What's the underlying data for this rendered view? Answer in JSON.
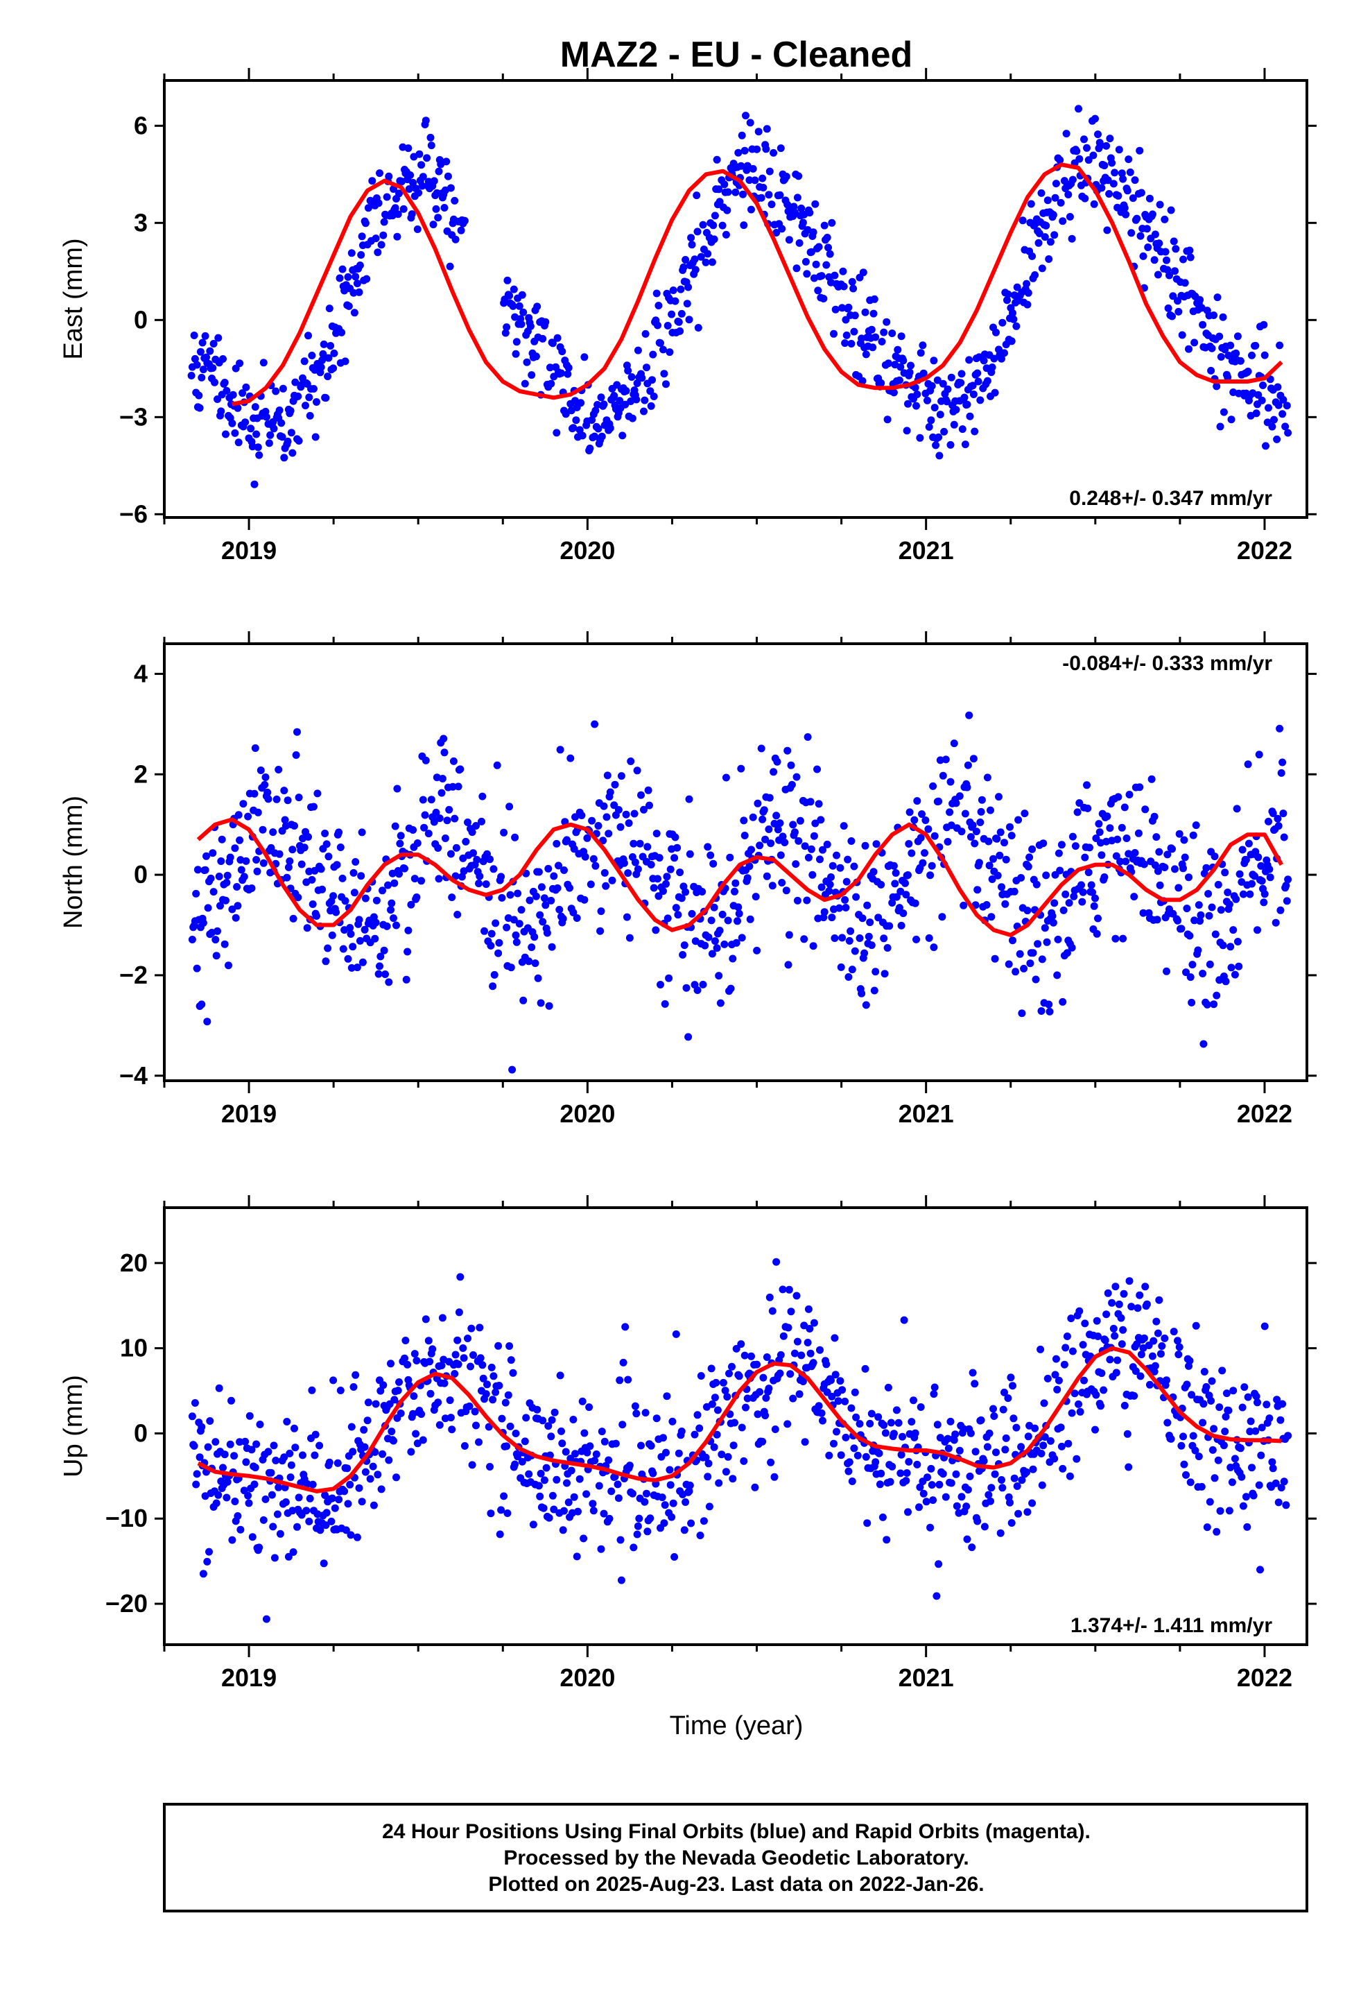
{
  "chart_data": {
    "type": "scatter",
    "title": "MAZ2  - EU - Cleaned",
    "xlabel": "Time (year)",
    "x_ticks": [
      "2019",
      "2020",
      "2021",
      "2022"
    ],
    "xlim": [
      2018.75,
      2022.125
    ],
    "colors": {
      "points": "#0000ff",
      "fit": "#ff0000",
      "frame": "#000000"
    },
    "panels": [
      {
        "id": "east",
        "ylabel": "East (mm)",
        "ylim": [
          -6.1,
          7.4
        ],
        "y_ticks": [
          6,
          3,
          0,
          -3,
          -6
        ],
        "rate_label": "0.248+/- 0.347 mm/yr",
        "rate_position": "bottom-right",
        "model": {
          "offset": 0.55,
          "trend": 0.248,
          "annual": [
            -3.55,
            -0.35
          ],
          "semiannual": [
            0.3,
            -0.35
          ]
        },
        "scatter_sd": 0.75,
        "series": [
          {
            "name": "",
            "x": [
              2018.95,
              2019.0,
              2019.05,
              2019.1,
              2019.15,
              2019.2,
              2019.25,
              2019.3,
              2019.35,
              2019.4,
              2019.45,
              2019.5,
              2019.55,
              2019.6,
              2019.65,
              2019.7,
              2019.75,
              2019.8,
              2019.85,
              2019.9,
              2019.95,
              2020.0,
              2020.05,
              2020.1,
              2020.15,
              2020.2,
              2020.25,
              2020.3,
              2020.35,
              2020.4,
              2020.45,
              2020.5,
              2020.55,
              2020.6,
              2020.65,
              2020.7,
              2020.75,
              2020.8,
              2020.85,
              2020.9,
              2020.95,
              2021.0,
              2021.05,
              2021.1,
              2021.15,
              2021.2,
              2021.25,
              2021.3,
              2021.35,
              2021.4,
              2021.45,
              2021.5,
              2021.55,
              2021.6,
              2021.65,
              2021.7,
              2021.75,
              2021.8,
              2021.85,
              2021.9,
              2021.95,
              2022.0,
              2022.05
            ],
            "y": [
              -2.6,
              -2.5,
              -2.1,
              -1.4,
              -0.4,
              0.8,
              2.0,
              3.2,
              4.0,
              4.3,
              4.1,
              3.3,
              2.2,
              0.9,
              -0.3,
              -1.3,
              -1.9,
              -2.2,
              -2.3,
              -2.4,
              -2.3,
              -2.0,
              -1.5,
              -0.6,
              0.6,
              1.9,
              3.1,
              4.0,
              4.5,
              4.6,
              4.3,
              3.6,
              2.5,
              1.3,
              0.1,
              -0.9,
              -1.6,
              -2.0,
              -2.1,
              -2.1,
              -2.0,
              -1.8,
              -1.4,
              -0.7,
              0.3,
              1.5,
              2.7,
              3.8,
              4.5,
              4.8,
              4.7,
              4.0,
              3.0,
              1.8,
              0.5,
              -0.5,
              -1.3,
              -1.7,
              -1.9,
              -1.9,
              -1.9,
              -1.8,
              -1.3
            ]
          }
        ]
      },
      {
        "id": "north",
        "ylabel": "North (mm)",
        "ylim": [
          -4.1,
          4.6
        ],
        "y_ticks": [
          4,
          2,
          0,
          -2,
          -4
        ],
        "rate_label": "-0.084+/- 0.333 mm/yr",
        "rate_position": "top-right",
        "model": {
          "offset": 0.0,
          "trend": -0.084,
          "annual": [
            0.05,
            0.0
          ],
          "semiannual": [
            0.55,
            0.82
          ]
        },
        "scatter_sd": 0.85,
        "series": [
          {
            "name": "",
            "x": [
              2018.85,
              2018.9,
              2018.95,
              2019.0,
              2019.05,
              2019.1,
              2019.15,
              2019.2,
              2019.25,
              2019.3,
              2019.35,
              2019.4,
              2019.45,
              2019.5,
              2019.55,
              2019.6,
              2019.65,
              2019.7,
              2019.75,
              2019.8,
              2019.85,
              2019.9,
              2019.95,
              2020.0,
              2020.05,
              2020.1,
              2020.15,
              2020.2,
              2020.25,
              2020.3,
              2020.35,
              2020.4,
              2020.45,
              2020.5,
              2020.55,
              2020.6,
              2020.65,
              2020.7,
              2020.75,
              2020.8,
              2020.85,
              2020.9,
              2020.95,
              2021.0,
              2021.05,
              2021.1,
              2021.15,
              2021.2,
              2021.25,
              2021.3,
              2021.35,
              2021.4,
              2021.45,
              2021.5,
              2021.55,
              2021.6,
              2021.65,
              2021.7,
              2021.75,
              2021.8,
              2021.85,
              2021.9,
              2021.95,
              2022.0,
              2022.05
            ],
            "y": [
              0.7,
              1.0,
              1.1,
              0.9,
              0.4,
              -0.2,
              -0.7,
              -1.0,
              -1.0,
              -0.7,
              -0.2,
              0.2,
              0.4,
              0.4,
              0.2,
              -0.1,
              -0.3,
              -0.4,
              -0.3,
              0.0,
              0.5,
              0.9,
              1.0,
              0.9,
              0.5,
              0.0,
              -0.5,
              -0.9,
              -1.1,
              -1.0,
              -0.7,
              -0.2,
              0.2,
              0.35,
              0.3,
              0.0,
              -0.3,
              -0.5,
              -0.4,
              -0.1,
              0.4,
              0.8,
              1.0,
              0.8,
              0.3,
              -0.3,
              -0.8,
              -1.1,
              -1.2,
              -1.0,
              -0.6,
              -0.2,
              0.1,
              0.2,
              0.2,
              0.0,
              -0.3,
              -0.5,
              -0.5,
              -0.3,
              0.1,
              0.6,
              0.8,
              0.8,
              0.2
            ]
          }
        ]
      },
      {
        "id": "up",
        "ylabel": "Up (mm)",
        "ylim": [
          -24.8,
          26.5
        ],
        "y_ticks": [
          20,
          10,
          0,
          -10,
          -20
        ],
        "rate_label": "1.374+/- 1.411 mm/yr",
        "rate_position": "bottom-right",
        "model": {
          "offset": -0.5,
          "trend": 1.374,
          "annual": [
            -5.5,
            -3.6
          ],
          "semiannual": [
            1.2,
            1.6
          ]
        },
        "scatter_sd": 4.6,
        "series": [
          {
            "name": "",
            "x": [
              2018.85,
              2018.9,
              2018.95,
              2019.0,
              2019.05,
              2019.1,
              2019.15,
              2019.2,
              2019.25,
              2019.3,
              2019.35,
              2019.4,
              2019.45,
              2019.5,
              2019.55,
              2019.6,
              2019.65,
              2019.7,
              2019.75,
              2019.8,
              2019.85,
              2019.9,
              2019.95,
              2020.0,
              2020.05,
              2020.1,
              2020.15,
              2020.2,
              2020.25,
              2020.3,
              2020.35,
              2020.4,
              2020.45,
              2020.5,
              2020.55,
              2020.6,
              2020.65,
              2020.7,
              2020.75,
              2020.8,
              2020.85,
              2020.9,
              2020.95,
              2021.0,
              2021.05,
              2021.1,
              2021.15,
              2021.2,
              2021.25,
              2021.3,
              2021.35,
              2021.4,
              2021.45,
              2021.5,
              2021.55,
              2021.6,
              2021.65,
              2021.7,
              2021.75,
              2021.8,
              2021.85,
              2021.9,
              2021.95,
              2022.0,
              2022.05
            ],
            "y": [
              -3.5,
              -4.5,
              -4.8,
              -5.0,
              -5.3,
              -5.8,
              -6.3,
              -6.8,
              -6.5,
              -5.0,
              -2.5,
              0.8,
              3.8,
              6.0,
              7.0,
              6.5,
              4.5,
              2.0,
              -0.2,
              -1.8,
              -2.7,
              -3.2,
              -3.5,
              -3.8,
              -4.2,
              -4.8,
              -5.3,
              -5.5,
              -5.0,
              -3.5,
              -1.0,
              2.0,
              5.0,
              7.2,
              8.2,
              8.0,
              6.5,
              4.0,
              1.5,
              -0.5,
              -1.5,
              -1.8,
              -2.0,
              -2.0,
              -2.3,
              -3.0,
              -3.8,
              -4.0,
              -3.5,
              -2.0,
              0.5,
              3.5,
              6.5,
              9.0,
              10.0,
              9.5,
              7.5,
              5.0,
              2.5,
              0.8,
              -0.3,
              -0.7,
              -0.8,
              -0.8,
              -0.9
            ]
          }
        ]
      }
    ]
  },
  "footer": {
    "line1": "24 Hour Positions Using Final Orbits (blue) and Rapid Orbits (magenta).",
    "line2": "Processed by the Nevada Geodetic Laboratory.",
    "line3": "Plotted on 2025-Aug-23. Last data on 2022-Jan-26."
  }
}
